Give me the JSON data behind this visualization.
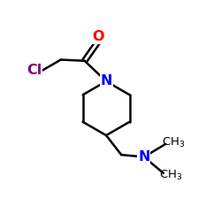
{
  "bg_color": "#ffffff",
  "bond_color": "#000000",
  "N_color": "#0000ff",
  "O_color": "#ff0000",
  "Cl_color": "#800080",
  "line_width": 1.8,
  "figsize": [
    2.5,
    2.5
  ],
  "dpi": 100,
  "xlim": [
    0,
    10
  ],
  "ylim": [
    0,
    10
  ]
}
